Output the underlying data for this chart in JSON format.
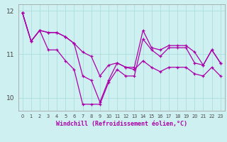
{
  "background_color": "#cff0f0",
  "line_color": "#aa00aa",
  "grid_color": "#aadddd",
  "xlabel": "Windchill (Refroidissement éolien,°C)",
  "ylim": [
    9.7,
    12.15
  ],
  "yticks": [
    10,
    11,
    12
  ],
  "xticks": [
    0,
    1,
    2,
    3,
    4,
    5,
    6,
    7,
    8,
    9,
    10,
    11,
    12,
    13,
    14,
    15,
    16,
    17,
    18,
    19,
    20,
    21,
    22,
    23
  ],
  "series1": [
    11.95,
    11.3,
    11.55,
    11.5,
    11.5,
    11.4,
    11.25,
    11.05,
    10.95,
    10.5,
    10.75,
    10.8,
    10.7,
    10.65,
    10.85,
    10.7,
    10.6,
    10.7,
    10.7,
    10.7,
    10.55,
    10.5,
    10.7,
    10.5
  ],
  "series2": [
    11.95,
    11.3,
    11.55,
    11.5,
    11.5,
    11.4,
    11.25,
    10.5,
    10.4,
    9.9,
    10.4,
    10.8,
    10.7,
    10.7,
    11.55,
    11.15,
    11.1,
    11.2,
    11.2,
    11.2,
    11.05,
    10.75,
    11.1,
    10.8
  ],
  "series3": [
    11.95,
    11.3,
    11.55,
    11.1,
    11.1,
    10.85,
    10.65,
    9.85,
    9.85,
    9.85,
    10.35,
    10.65,
    10.5,
    10.5,
    11.35,
    11.1,
    10.95,
    11.15,
    11.15,
    11.15,
    10.8,
    10.75,
    11.1,
    10.8
  ]
}
